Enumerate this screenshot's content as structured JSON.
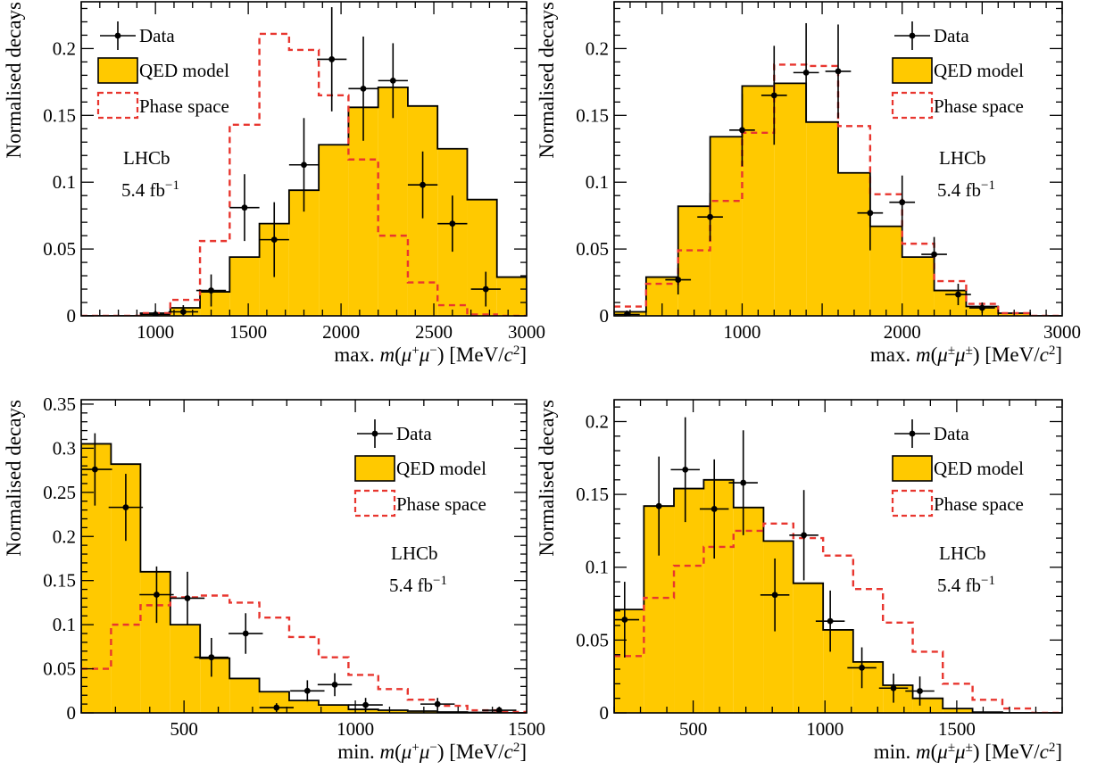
{
  "colors": {
    "qed_fill": "#ffc900",
    "phase_space": "#e8362f",
    "data": "#000000"
  },
  "chart_data": [
    {
      "type": "histogram",
      "xlabel": "max. m(μ⁺μ⁻) [MeV/c²]",
      "ylabel": "Normalised decays",
      "xlim": [
        600,
        3000
      ],
      "ylim": [
        0,
        0.235
      ],
      "xticks": [
        "1000",
        "1500",
        "2000",
        "2500",
        "3000"
      ],
      "yticks": [
        "0",
        "0.05",
        "0.1",
        "0.15",
        "0.2"
      ],
      "legend": [
        "Data",
        "QED model",
        "Phase space"
      ],
      "legend_position": "top-left",
      "annotations": [
        "LHCb",
        "5.4 fb⁻¹"
      ],
      "bin_edges": [
        600,
        760,
        920,
        1080,
        1240,
        1400,
        1560,
        1720,
        1880,
        2040,
        2200,
        2360,
        2520,
        2680,
        2840,
        3000
      ],
      "series": [
        {
          "name": "QED model",
          "style": "filled-step",
          "values": [
            0,
            0,
            0.002,
            0.006,
            0.018,
            0.044,
            0.069,
            0.094,
            0.128,
            0.156,
            0.171,
            0.157,
            0.125,
            0.087,
            0.029,
            0
          ]
        },
        {
          "name": "Phase space",
          "style": "dashed-step",
          "values": [
            0,
            0,
            0.002,
            0.012,
            0.056,
            0.143,
            0.211,
            0.199,
            0.165,
            0.117,
            0.06,
            0.025,
            0.008,
            0.001,
            0,
            0
          ]
        },
        {
          "name": "Data",
          "style": "points",
          "x": [
            1000,
            1150,
            1300,
            1480,
            1640,
            1800,
            1950,
            2120,
            2280,
            2440,
            2600,
            2780
          ],
          "y": [
            0.001,
            0.003,
            0.019,
            0.081,
            0.057,
            0.113,
            0.192,
            0.17,
            0.176,
            0.098,
            0.069,
            0.02
          ],
          "yerr": [
            0.003,
            0.005,
            0.012,
            0.025,
            0.028,
            0.035,
            0.039,
            0.039,
            0.028,
            0.025,
            0.021,
            0.013
          ],
          "xerr": [
            80,
            80,
            80,
            80,
            80,
            80,
            80,
            80,
            80,
            80,
            80,
            80
          ]
        }
      ]
    },
    {
      "type": "histogram",
      "xlabel": "max. m(μ±μ±) [MeV/c²]",
      "ylabel": "Normalised decays",
      "xlim": [
        200,
        3000
      ],
      "ylim": [
        0,
        0.235
      ],
      "xticks": [
        "1000",
        "2000",
        "3000"
      ],
      "yticks": [
        "0",
        "0.05",
        "0.1",
        "0.15",
        "0.2"
      ],
      "legend": [
        "Data",
        "QED model",
        "Phase space"
      ],
      "legend_position": "top-right",
      "annotations": [
        "LHCb",
        "5.4 fb⁻¹"
      ],
      "bin_edges": [
        200,
        400,
        600,
        800,
        1000,
        1200,
        1400,
        1600,
        1800,
        2000,
        2200,
        2400,
        2600,
        2800,
        3000
      ],
      "series": [
        {
          "name": "QED model",
          "style": "filled-step",
          "values": [
            0.003,
            0.029,
            0.082,
            0.134,
            0.172,
            0.174,
            0.145,
            0.107,
            0.067,
            0.044,
            0.019,
            0.007,
            0.002,
            0
          ]
        },
        {
          "name": "Phase space",
          "style": "dashed-step",
          "values": [
            0.007,
            0.024,
            0.049,
            0.086,
            0.137,
            0.188,
            0.187,
            0.142,
            0.091,
            0.054,
            0.026,
            0.009,
            0.002,
            0
          ]
        },
        {
          "name": "Data",
          "style": "points",
          "x": [
            280,
            600,
            800,
            1000,
            1200,
            1400,
            1600,
            1800,
            2000,
            2200,
            2350,
            2500
          ],
          "y": [
            0.001,
            0.027,
            0.074,
            0.139,
            0.165,
            0.182,
            0.183,
            0.077,
            0.085,
            0.046,
            0.016,
            0.006
          ],
          "yerr": [
            0.003,
            0.011,
            0.018,
            0.027,
            0.037,
            0.037,
            0.035,
            0.028,
            0.02,
            0.013,
            0.008,
            0.004
          ],
          "xerr": [
            80,
            80,
            80,
            80,
            80,
            80,
            80,
            80,
            80,
            80,
            80,
            80
          ]
        }
      ]
    },
    {
      "type": "histogram",
      "xlabel": "min. m(μ⁺μ⁻) [MeV/c²]",
      "ylabel": "Normalised decays",
      "xlim": [
        200,
        1500
      ],
      "ylim": [
        0,
        0.355
      ],
      "xticks": [
        "500",
        "1000",
        "1500"
      ],
      "yticks": [
        "0",
        "0.05",
        "0.1",
        "0.15",
        "0.2",
        "0.25",
        "0.3",
        "0.35"
      ],
      "legend": [
        "Data",
        "QED model",
        "Phase space"
      ],
      "legend_position": "top-right",
      "annotations": [
        "LHCb",
        "5.4 fb⁻¹"
      ],
      "bin_edges": [
        200,
        287,
        373,
        460,
        547,
        633,
        720,
        807,
        893,
        980,
        1067,
        1153,
        1240,
        1327,
        1413,
        1500
      ],
      "series": [
        {
          "name": "QED model",
          "style": "filled-step",
          "values": [
            0.305,
            0.282,
            0.16,
            0.1,
            0.062,
            0.039,
            0.024,
            0.014,
            0.009,
            0.004,
            0.003,
            0.002,
            0.001,
            0.0005,
            0
          ]
        },
        {
          "name": "Phase space",
          "style": "dashed-step",
          "values": [
            0.05,
            0.1,
            0.122,
            0.131,
            0.133,
            0.125,
            0.108,
            0.086,
            0.063,
            0.043,
            0.027,
            0.015,
            0.008,
            0.003,
            0.001
          ]
        },
        {
          "name": "Data",
          "style": "points",
          "x": [
            240,
            330,
            420,
            510,
            580,
            680,
            770,
            860,
            940,
            1030,
            1240,
            1420
          ],
          "y": [
            0.276,
            0.233,
            0.134,
            0.13,
            0.063,
            0.09,
            0.006,
            0.025,
            0.032,
            0.009,
            0.01,
            0.003
          ],
          "yerr": [
            0.041,
            0.038,
            0.032,
            0.03,
            0.022,
            0.023,
            0.005,
            0.012,
            0.013,
            0.008,
            0.007,
            0.004
          ],
          "xerr": [
            50,
            50,
            50,
            50,
            50,
            50,
            50,
            50,
            50,
            50,
            50,
            50
          ]
        }
      ]
    },
    {
      "type": "histogram",
      "xlabel": "min. m(μ±μ±) [MeV/c²]",
      "ylabel": "Normalised decays",
      "xlim": [
        200,
        1900
      ],
      "ylim": [
        0,
        0.215
      ],
      "xticks": [
        "500",
        "1000",
        "1500"
      ],
      "yticks": [
        "0",
        "0.05",
        "0.1",
        "0.15",
        "0.2"
      ],
      "legend": [
        "Data",
        "QED model",
        "Phase space"
      ],
      "legend_position": "top-right",
      "annotations": [
        "LHCb",
        "5.4 fb⁻¹"
      ],
      "bin_edges": [
        200,
        313,
        427,
        540,
        653,
        767,
        880,
        993,
        1107,
        1220,
        1333,
        1447,
        1560,
        1673,
        1787,
        1900
      ],
      "series": [
        {
          "name": "QED model",
          "style": "filled-step",
          "values": [
            0.071,
            0.142,
            0.154,
            0.16,
            0.141,
            0.118,
            0.089,
            0.057,
            0.035,
            0.019,
            0.01,
            0.003,
            0.0005,
            0,
            0
          ]
        },
        {
          "name": "Phase space",
          "style": "dashed-step",
          "values": [
            0.039,
            0.079,
            0.101,
            0.114,
            0.125,
            0.13,
            0.12,
            0.108,
            0.085,
            0.062,
            0.042,
            0.02,
            0.009,
            0.003,
            0
          ]
        },
        {
          "name": "Data",
          "style": "points",
          "x": [
            240,
            370,
            470,
            580,
            690,
            810,
            920,
            1020,
            1140,
            1260,
            1360
          ],
          "y": [
            0.064,
            0.142,
            0.167,
            0.14,
            0.158,
            0.081,
            0.122,
            0.063,
            0.031,
            0.017,
            0.015
          ],
          "yerr": [
            0.026,
            0.034,
            0.036,
            0.034,
            0.036,
            0.025,
            0.031,
            0.021,
            0.014,
            0.01,
            0.01
          ],
          "xerr": [
            55,
            55,
            55,
            55,
            55,
            55,
            55,
            55,
            55,
            55,
            55
          ]
        }
      ]
    }
  ]
}
